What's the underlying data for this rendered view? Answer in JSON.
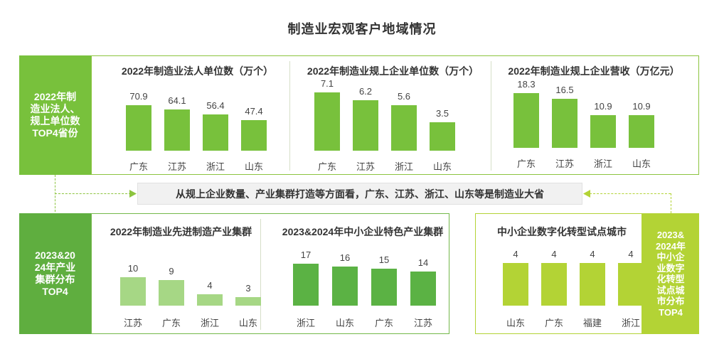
{
  "page_title": "制造业宏观客户地域情况",
  "colors": {
    "bar_green": "#78c13c",
    "bar_light": "#a6d785",
    "bar_mid": "#5bb244",
    "bar_lime": "#b3d335",
    "label_dark": "#5fae3f",
    "label_mid": "#78c13c",
    "label_lime": "#b3d335"
  },
  "labels": {
    "top_left": [
      "2022年制",
      "造业法人、",
      "规上单位数",
      "TOP4省份"
    ],
    "bottom_left": [
      "2023&20",
      "24年产业",
      "集群分布",
      "TOP4"
    ],
    "bottom_right": [
      "2023&",
      "2024年",
      "中小企",
      "业数字",
      "化转型",
      "试点城",
      "市分布",
      "TOP4"
    ]
  },
  "summary": "从规上企业数量、产业集群打造等方面看，广东、江苏、浙江、山东等是制造业大省",
  "chart_data": [
    {
      "type": "bar",
      "title": "2022年制造业法人单位数（万个）",
      "categories": [
        "广东",
        "江苏",
        "浙江",
        "山东"
      ],
      "values": [
        70.9,
        64.1,
        56.4,
        47.4
      ],
      "labels": [
        "70.9",
        "64.1",
        "56.4",
        "47.4"
      ],
      "ylim": [
        0,
        80
      ]
    },
    {
      "type": "bar",
      "title": "2022年制造业规上企业单位数（万个）",
      "categories": [
        "广东",
        "江苏",
        "浙江",
        "山东"
      ],
      "values": [
        7.1,
        6.2,
        5.6,
        3.5
      ],
      "labels": [
        "7.1",
        "6.2",
        "5.6",
        "3.5"
      ],
      "ylim": [
        0,
        8
      ]
    },
    {
      "type": "bar",
      "title": "2022年制造业规上企业营收（万亿元）",
      "categories": [
        "广东",
        "江苏",
        "浙江",
        "山东"
      ],
      "values": [
        18.3,
        16.5,
        10.9,
        10.9
      ],
      "labels": [
        "18.3",
        "16.5",
        "10.9",
        "10.9"
      ],
      "ylim": [
        0,
        19
      ]
    },
    {
      "type": "bar",
      "title": "2022年制造业先进制造产业集群",
      "categories": [
        "江苏",
        "广东",
        "浙江",
        "山东"
      ],
      "values": [
        10,
        9,
        4,
        3
      ],
      "labels": [
        "10",
        "9",
        "4",
        "3"
      ],
      "ylim": [
        0,
        12
      ]
    },
    {
      "type": "bar",
      "title": "2023&2024年中小企业特色产业集群",
      "categories": [
        "浙江",
        "山东",
        "广东",
        "江苏"
      ],
      "values": [
        17,
        16,
        15,
        14
      ],
      "labels": [
        "17",
        "16",
        "15",
        "14"
      ],
      "ylim": [
        0,
        18.5
      ]
    },
    {
      "type": "bar",
      "title": "中小企业数字化转型试点城市",
      "categories": [
        "山东",
        "广东",
        "福建",
        "浙江"
      ],
      "values": [
        4,
        4,
        4,
        4
      ],
      "labels": [
        "4",
        "4",
        "4",
        "4"
      ],
      "ylim": [
        0,
        4.3
      ]
    }
  ]
}
